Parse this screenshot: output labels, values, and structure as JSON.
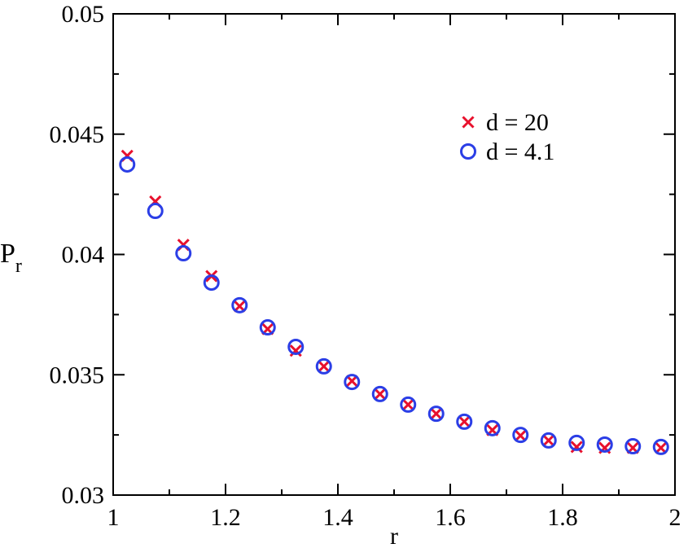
{
  "chart_data": {
    "type": "scatter",
    "xlabel": "r",
    "ylabel": "P",
    "ylabel_subscript": "r",
    "x": [
      1.025,
      1.075,
      1.125,
      1.175,
      1.225,
      1.275,
      1.325,
      1.375,
      1.425,
      1.475,
      1.525,
      1.575,
      1.625,
      1.675,
      1.725,
      1.775,
      1.825,
      1.875,
      1.925,
      1.975
    ],
    "series": [
      {
        "name": "d = 20",
        "color": "#e8112d",
        "marker": "x",
        "values": [
          0.0441,
          0.0422,
          0.0404,
          0.0391,
          0.03785,
          0.0369,
          0.036,
          0.03535,
          0.03474,
          0.0342,
          0.03376,
          0.03338,
          0.03305,
          0.0327,
          0.03247,
          0.03227,
          0.032,
          0.03196,
          0.03196,
          0.03196
        ]
      },
      {
        "name": "d = 4.1",
        "color": "#2b3ee6",
        "marker": "o",
        "values": [
          0.04374,
          0.04181,
          0.04005,
          0.03883,
          0.03789,
          0.03697,
          0.03616,
          0.03535,
          0.0347,
          0.0342,
          0.03376,
          0.03338,
          0.03305,
          0.03278,
          0.0325,
          0.03227,
          0.03217,
          0.0321,
          0.03203,
          0.032
        ]
      }
    ],
    "xlim": [
      1,
      2
    ],
    "xticks": [
      1,
      1.2,
      1.4,
      1.6,
      1.8,
      2
    ],
    "ylim": [
      0.03,
      0.05
    ],
    "yticks": [
      0.03,
      0.035,
      0.04,
      0.045,
      0.05
    ],
    "legend": "upper right",
    "grid": false
  }
}
